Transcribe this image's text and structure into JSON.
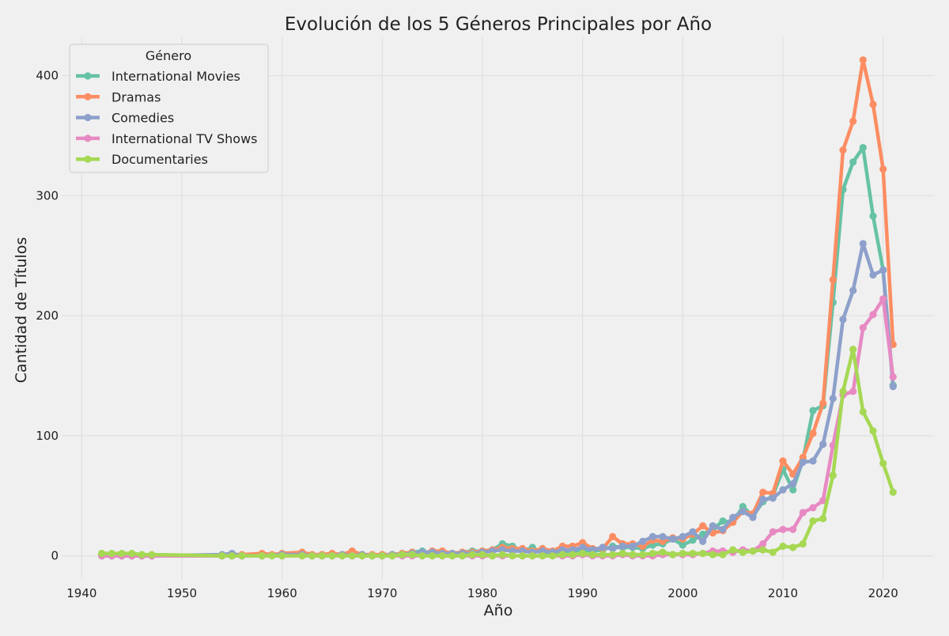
{
  "chart_data": {
    "type": "line",
    "title": "Evolución de los 5 Géneros Principales por Año",
    "xlabel": "Año",
    "ylabel": "Cantidad de Títulos",
    "xlim": [
      1938,
      2025
    ],
    "ylim": [
      -20,
      432
    ],
    "xticks": [
      1940,
      1950,
      1960,
      1970,
      1980,
      1990,
      2000,
      2010,
      2020
    ],
    "yticks": [
      0,
      100,
      200,
      300,
      400
    ],
    "grid": true,
    "legend": {
      "title": "Género",
      "position": "top-left"
    },
    "series": [
      {
        "name": "International Movies",
        "color": "#66c2a5",
        "x": [
          1942,
          1943,
          1944,
          1945,
          1946,
          1947,
          1954,
          1955,
          1956,
          1958,
          1960,
          1962,
          1963,
          1964,
          1965,
          1966,
          1967,
          1968,
          1969,
          1970,
          1971,
          1972,
          1973,
          1974,
          1975,
          1976,
          1977,
          1978,
          1979,
          1980,
          1981,
          1982,
          1983,
          1984,
          1985,
          1986,
          1987,
          1988,
          1989,
          1990,
          1991,
          1992,
          1993,
          1994,
          1995,
          1996,
          1997,
          1998,
          1999,
          2000,
          2001,
          2002,
          2003,
          2004,
          2005,
          2006,
          2007,
          2008,
          2009,
          2010,
          2011,
          2012,
          2013,
          2014,
          2015,
          2016,
          2017,
          2018,
          2019,
          2020,
          2021
        ],
        "y": [
          0,
          0,
          0,
          0,
          0,
          0,
          0,
          0,
          0,
          1,
          1,
          1,
          0,
          1,
          0,
          1,
          2,
          1,
          0,
          1,
          1,
          2,
          3,
          4,
          2,
          3,
          2,
          3,
          4,
          4,
          5,
          10,
          8,
          4,
          7,
          2,
          2,
          4,
          3,
          5,
          4,
          5,
          8,
          7,
          7,
          6,
          9,
          10,
          14,
          9,
          13,
          18,
          22,
          29,
          28,
          41,
          33,
          45,
          50,
          72,
          55,
          80,
          121,
          125,
          211,
          305,
          328,
          340,
          283,
          238,
          142
        ]
      },
      {
        "name": "Dramas",
        "color": "#fc8d62",
        "x": [
          1942,
          1943,
          1944,
          1945,
          1946,
          1947,
          1954,
          1955,
          1956,
          1958,
          1959,
          1960,
          1962,
          1963,
          1964,
          1965,
          1966,
          1967,
          1968,
          1969,
          1970,
          1971,
          1972,
          1973,
          1974,
          1975,
          1976,
          1977,
          1978,
          1979,
          1980,
          1981,
          1982,
          1983,
          1984,
          1985,
          1986,
          1987,
          1988,
          1989,
          1990,
          1991,
          1992,
          1993,
          1994,
          1995,
          1996,
          1997,
          1998,
          1999,
          2000,
          2001,
          2002,
          2003,
          2004,
          2005,
          2006,
          2007,
          2008,
          2009,
          2010,
          2011,
          2012,
          2013,
          2014,
          2015,
          2016,
          2017,
          2018,
          2019,
          2020,
          2021
        ],
        "y": [
          1,
          1,
          1,
          1,
          0,
          0,
          0,
          1,
          1,
          2,
          1,
          2,
          3,
          1,
          1,
          2,
          1,
          4,
          1,
          1,
          1,
          1,
          2,
          3,
          2,
          4,
          4,
          2,
          3,
          3,
          4,
          5,
          7,
          6,
          6,
          4,
          6,
          4,
          8,
          8,
          11,
          6,
          6,
          16,
          10,
          10,
          8,
          13,
          12,
          15,
          14,
          18,
          25,
          19,
          21,
          28,
          37,
          35,
          53,
          52,
          79,
          68,
          82,
          102,
          127,
          230,
          338,
          362,
          413,
          376,
          322,
          176
        ]
      },
      {
        "name": "Comedies",
        "color": "#8da0cb",
        "x": [
          1942,
          1943,
          1944,
          1945,
          1946,
          1947,
          1954,
          1955,
          1956,
          1958,
          1960,
          1962,
          1963,
          1964,
          1965,
          1966,
          1967,
          1968,
          1969,
          1970,
          1971,
          1972,
          1973,
          1974,
          1975,
          1976,
          1977,
          1978,
          1979,
          1980,
          1981,
          1982,
          1983,
          1984,
          1985,
          1986,
          1987,
          1988,
          1989,
          1990,
          1991,
          1992,
          1993,
          1994,
          1995,
          1996,
          1997,
          1998,
          1999,
          2000,
          2001,
          2002,
          2003,
          2004,
          2005,
          2006,
          2007,
          2008,
          2009,
          2010,
          2011,
          2012,
          2013,
          2014,
          2015,
          2016,
          2017,
          2018,
          2019,
          2020,
          2021
        ],
        "y": [
          0,
          0,
          0,
          0,
          0,
          0,
          1,
          2,
          0,
          0,
          1,
          1,
          0,
          0,
          0,
          1,
          0,
          1,
          0,
          0,
          1,
          1,
          2,
          3,
          3,
          2,
          2,
          2,
          2,
          3,
          4,
          5,
          4,
          4,
          3,
          4,
          3,
          5,
          5,
          7,
          5,
          7,
          6,
          8,
          8,
          12,
          16,
          16,
          14,
          16,
          20,
          12,
          25,
          22,
          32,
          37,
          32,
          47,
          48,
          55,
          60,
          78,
          79,
          93,
          131,
          197,
          221,
          260,
          234,
          238,
          141
        ]
      },
      {
        "name": "International TV Shows",
        "color": "#e78ac3",
        "x": [
          1942,
          1943,
          1944,
          1945,
          1946,
          1947,
          1954,
          1955,
          1956,
          1958,
          1960,
          1962,
          1963,
          1964,
          1965,
          1966,
          1967,
          1968,
          1969,
          1970,
          1971,
          1972,
          1973,
          1974,
          1975,
          1976,
          1977,
          1978,
          1979,
          1980,
          1981,
          1982,
          1983,
          1984,
          1985,
          1986,
          1987,
          1988,
          1989,
          1990,
          1991,
          1992,
          1993,
          1994,
          1995,
          1996,
          1997,
          1998,
          1999,
          2000,
          2001,
          2002,
          2003,
          2004,
          2005,
          2006,
          2007,
          2008,
          2009,
          2010,
          2011,
          2012,
          2013,
          2014,
          2015,
          2016,
          2017,
          2018,
          2019,
          2020,
          2021
        ],
        "y": [
          0,
          0,
          0,
          0,
          0,
          0,
          0,
          0,
          0,
          0,
          0,
          0,
          0,
          0,
          0,
          0,
          0,
          0,
          0,
          0,
          0,
          0,
          0,
          0,
          0,
          0,
          0,
          0,
          0,
          0,
          0,
          0,
          0,
          0,
          0,
          0,
          0,
          0,
          0,
          1,
          0,
          0,
          0,
          1,
          0,
          0,
          0,
          1,
          1,
          1,
          1,
          2,
          4,
          4,
          3,
          5,
          4,
          10,
          20,
          22,
          22,
          36,
          40,
          46,
          92,
          134,
          137,
          190,
          201,
          214,
          149
        ]
      },
      {
        "name": "Documentaries",
        "color": "#a6d854",
        "x": [
          1942,
          1943,
          1944,
          1945,
          1946,
          1947,
          1954,
          1955,
          1956,
          1958,
          1959,
          1960,
          1962,
          1963,
          1964,
          1965,
          1966,
          1967,
          1968,
          1969,
          1970,
          1971,
          1972,
          1973,
          1974,
          1975,
          1976,
          1977,
          1978,
          1979,
          1980,
          1981,
          1982,
          1983,
          1984,
          1985,
          1986,
          1987,
          1988,
          1989,
          1990,
          1991,
          1992,
          1993,
          1994,
          1995,
          1996,
          1997,
          1998,
          1999,
          2000,
          2001,
          2002,
          2003,
          2004,
          2005,
          2006,
          2007,
          2008,
          2009,
          2010,
          2011,
          2012,
          2013,
          2014,
          2015,
          2016,
          2017,
          2018,
          2019,
          2020,
          2021
        ],
        "y": [
          2,
          2,
          2,
          2,
          1,
          1,
          0,
          0,
          0,
          0,
          0,
          0,
          0,
          0,
          0,
          0,
          0,
          0,
          0,
          0,
          0,
          0,
          1,
          1,
          0,
          0,
          0,
          0,
          0,
          1,
          1,
          0,
          1,
          0,
          0,
          0,
          0,
          0,
          1,
          1,
          2,
          1,
          1,
          1,
          2,
          1,
          1,
          2,
          3,
          1,
          2,
          2,
          2,
          1,
          1,
          5,
          3,
          4,
          5,
          3,
          8,
          7,
          10,
          29,
          31,
          67,
          137,
          172,
          120,
          104,
          77,
          53
        ]
      }
    ]
  }
}
